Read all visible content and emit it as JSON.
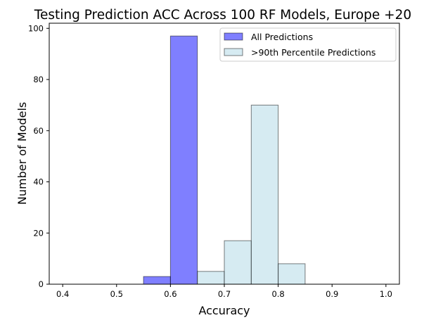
{
  "chart_data": {
    "type": "bar",
    "title": "Testing Prediction ACC Across 100 RF Models, Europe +20",
    "xlabel": "Accuracy",
    "ylabel": "Number of Models",
    "xlim": [
      0.375,
      1.025
    ],
    "ylim": [
      0,
      102
    ],
    "x_ticks": [
      "0.4",
      "0.5",
      "0.6",
      "0.7",
      "0.8",
      "0.9",
      "1.0"
    ],
    "y_ticks": [
      "0",
      "20",
      "40",
      "60",
      "80",
      "100"
    ],
    "bin_edges": [
      0.4,
      0.45,
      0.5,
      0.55,
      0.6,
      0.65,
      0.7,
      0.75,
      0.8,
      0.85,
      0.9,
      0.95,
      1.0
    ],
    "grid": false,
    "legend_position": "top-right",
    "series": [
      {
        "name": "All Predictions",
        "color": "#0000ff",
        "opacity": 0.5,
        "counts": [
          0,
          0,
          0,
          3,
          97,
          0,
          0,
          0,
          0,
          0,
          0,
          0
        ]
      },
      {
        "name": ">90th Percentile Predictions",
        "color": "#add8e6",
        "opacity": 0.5,
        "counts": [
          0,
          0,
          0,
          0,
          0,
          5,
          17,
          70,
          8,
          0,
          0,
          0
        ]
      }
    ]
  }
}
